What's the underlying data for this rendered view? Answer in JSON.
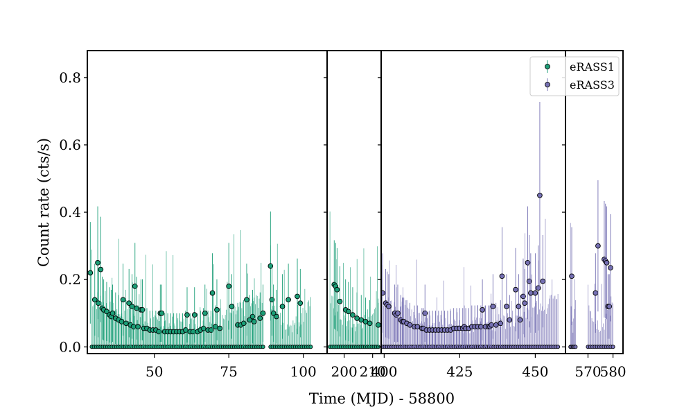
{
  "chart_data": {
    "type": "scatter",
    "title": "",
    "xlabel": "Time (MJD) - 58800",
    "ylabel": "Count rate (cts/s)",
    "ylim": [
      -0.02,
      0.88
    ],
    "yticks": [
      0.0,
      0.2,
      0.4,
      0.6,
      0.8
    ],
    "ytick_labels": [
      "0.0",
      "0.2",
      "0.4",
      "0.6",
      "0.8"
    ],
    "grid": false,
    "legend_position": "top-right",
    "colors": {
      "eRASS1": "#1b9e77",
      "eRASS3": "#7570b3",
      "edge": "#000000"
    },
    "series": [
      {
        "name": "eRASS1",
        "marker": "circle-with-errorbar"
      },
      {
        "name": "eRASS3",
        "marker": "circle-with-errorbar"
      }
    ],
    "panels": [
      {
        "series": "eRASS1",
        "xlim": [
          27.5,
          108
        ],
        "xticks": [
          50,
          75,
          100
        ],
        "xtick_labels": [
          "50",
          "75",
          "100"
        ],
        "detections": [
          [
            28.5,
            0.22
          ],
          [
            30,
            0.14
          ],
          [
            31,
            0.25
          ],
          [
            31.2,
            0.13
          ],
          [
            32,
            0.23
          ],
          [
            32.5,
            0.115
          ],
          [
            33,
            0.11
          ],
          [
            34,
            0.105
          ],
          [
            35,
            0.095
          ],
          [
            35.5,
            0.09
          ],
          [
            36,
            0.1
          ],
          [
            37,
            0.085
          ],
          [
            38,
            0.08
          ],
          [
            39,
            0.075
          ],
          [
            39.5,
            0.14
          ],
          [
            40.5,
            0.07
          ],
          [
            41.5,
            0.13
          ],
          [
            42,
            0.065
          ],
          [
            42.5,
            0.12
          ],
          [
            43,
            0.06
          ],
          [
            43.5,
            0.18
          ],
          [
            44,
            0.115
          ],
          [
            44.5,
            0.06
          ],
          [
            45.5,
            0.11
          ],
          [
            46,
            0.11
          ],
          [
            46.5,
            0.055
          ],
          [
            47.5,
            0.055
          ],
          [
            48.5,
            0.05
          ],
          [
            49.5,
            0.05
          ],
          [
            50.5,
            0.05
          ],
          [
            51.5,
            0.045
          ],
          [
            52,
            0.1
          ],
          [
            52.5,
            0.1
          ],
          [
            53.5,
            0.045
          ],
          [
            54.5,
            0.045
          ],
          [
            55.5,
            0.045
          ],
          [
            56.5,
            0.045
          ],
          [
            57.5,
            0.045
          ],
          [
            58.5,
            0.045
          ],
          [
            59.5,
            0.045
          ],
          [
            60.5,
            0.05
          ],
          [
            61,
            0.095
          ],
          [
            62,
            0.045
          ],
          [
            63,
            0.045
          ],
          [
            63.5,
            0.095
          ],
          [
            64.5,
            0.045
          ],
          [
            65.5,
            0.05
          ],
          [
            66.5,
            0.055
          ],
          [
            67,
            0.1
          ],
          [
            68,
            0.05
          ],
          [
            69,
            0.05
          ],
          [
            69.5,
            0.16
          ],
          [
            70.5,
            0.06
          ],
          [
            71,
            0.11
          ],
          [
            72,
            0.055
          ],
          [
            75,
            0.18
          ],
          [
            76,
            0.12
          ],
          [
            78,
            0.065
          ],
          [
            79,
            0.065
          ],
          [
            80,
            0.07
          ],
          [
            81,
            0.14
          ],
          [
            82,
            0.08
          ],
          [
            83,
            0.09
          ],
          [
            83.5,
            0.075
          ],
          [
            85.5,
            0.085
          ],
          [
            86.5,
            0.1
          ],
          [
            89,
            0.24
          ],
          [
            89.5,
            0.14
          ],
          [
            90,
            0.1
          ],
          [
            91,
            0.09
          ],
          [
            93,
            0.12
          ],
          [
            95,
            0.14
          ],
          [
            98,
            0.15
          ],
          [
            99,
            0.13
          ]
        ],
        "upper_limit_segments": [
          [
            29,
            86.5,
            0.2
          ],
          [
            89,
            102.5,
            0.2
          ]
        ]
      },
      {
        "series": "eRASS1",
        "xlim": [
          194,
          213
        ],
        "xticks": [
          200,
          210
        ],
        "xtick_labels": [
          "200",
          "210"
        ],
        "detections": [
          [
            196.5,
            0.185
          ],
          [
            197,
            0.18
          ],
          [
            197.5,
            0.17
          ],
          [
            198.5,
            0.135
          ],
          [
            200.5,
            0.11
          ],
          [
            201.5,
            0.105
          ],
          [
            203,
            0.095
          ],
          [
            204.5,
            0.085
          ],
          [
            206,
            0.08
          ],
          [
            207.5,
            0.075
          ],
          [
            209,
            0.07
          ],
          [
            212,
            0.065
          ]
        ],
        "upper_limit_segments": [
          [
            195,
            212,
            0.2
          ]
        ]
      },
      {
        "series": "eRASS3",
        "xlim": [
          399,
          460
        ],
        "xticks": [
          400,
          425,
          450
        ],
        "xtick_labels": [
          "400",
          "425",
          "450"
        ],
        "detections": [
          [
            399.5,
            0.16
          ],
          [
            400.5,
            0.13
          ],
          [
            401,
            0.125
          ],
          [
            401.5,
            0.12
          ],
          [
            403.5,
            0.1
          ],
          [
            404,
            0.095
          ],
          [
            404.5,
            0.1
          ],
          [
            405.5,
            0.08
          ],
          [
            406,
            0.075
          ],
          [
            406.5,
            0.075
          ],
          [
            407.5,
            0.07
          ],
          [
            408.5,
            0.065
          ],
          [
            410,
            0.06
          ],
          [
            411,
            0.06
          ],
          [
            412.5,
            0.055
          ],
          [
            413,
            0.055
          ],
          [
            413.5,
            0.1
          ],
          [
            414,
            0.05
          ],
          [
            415,
            0.05
          ],
          [
            416,
            0.05
          ],
          [
            417,
            0.05
          ],
          [
            418,
            0.05
          ],
          [
            419,
            0.05
          ],
          [
            420,
            0.05
          ],
          [
            421,
            0.05
          ],
          [
            422,
            0.05
          ],
          [
            423,
            0.055
          ],
          [
            424,
            0.055
          ],
          [
            425,
            0.055
          ],
          [
            426,
            0.055
          ],
          [
            426.5,
            0.06
          ],
          [
            427,
            0.055
          ],
          [
            428,
            0.055
          ],
          [
            429,
            0.06
          ],
          [
            430,
            0.06
          ],
          [
            431,
            0.06
          ],
          [
            432,
            0.06
          ],
          [
            432.5,
            0.11
          ],
          [
            433.5,
            0.06
          ],
          [
            434.5,
            0.06
          ],
          [
            435,
            0.06
          ],
          [
            435.5,
            0.065
          ],
          [
            436,
            0.12
          ],
          [
            437,
            0.065
          ],
          [
            438.5,
            0.07
          ],
          [
            439,
            0.21
          ],
          [
            440.5,
            0.12
          ],
          [
            441.5,
            0.08
          ],
          [
            443.5,
            0.17
          ],
          [
            444.5,
            0.12
          ],
          [
            445,
            0.08
          ],
          [
            446,
            0.15
          ],
          [
            446.5,
            0.13
          ],
          [
            447.5,
            0.25
          ],
          [
            448,
            0.195
          ],
          [
            448.5,
            0.16
          ],
          [
            450,
            0.16
          ],
          [
            451,
            0.175
          ],
          [
            451.5,
            0.45
          ],
          [
            452.5,
            0.195
          ]
        ],
        "upper_limit_segments": [
          [
            399.5,
            457.5,
            0.2
          ]
        ]
      },
      {
        "series": "eRASS3",
        "xlim": [
          561,
          584
        ],
        "xticks": [
          570,
          580
        ],
        "xtick_labels": [
          "570",
          "580"
        ],
        "detections": [
          [
            563.5,
            0.21
          ],
          [
            573,
            0.16
          ],
          [
            574,
            0.3
          ],
          [
            576.5,
            0.26
          ],
          [
            577,
            0.255
          ],
          [
            577.5,
            0.25
          ],
          [
            578,
            0.12
          ],
          [
            578.5,
            0.12
          ],
          [
            579,
            0.235
          ]
        ],
        "upper_limit_segments": [
          [
            563,
            565,
            0.2
          ],
          [
            570,
            580,
            0.2
          ]
        ]
      }
    ]
  }
}
